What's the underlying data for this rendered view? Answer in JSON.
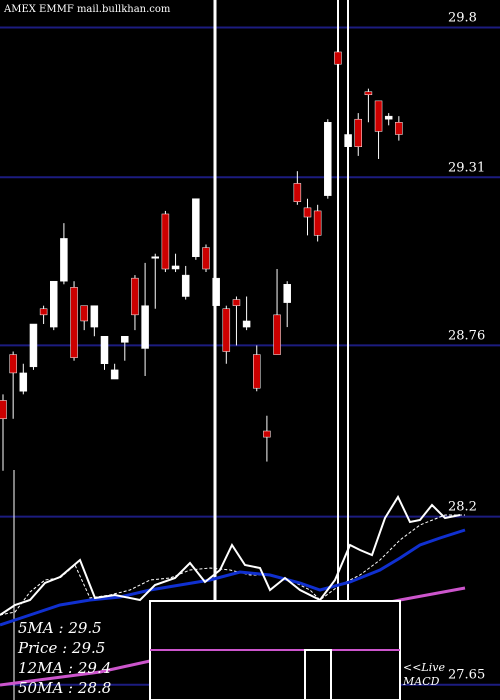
{
  "chart_data": {
    "type": "candlestick",
    "title": "AMEX  EMMF mail.bullkhan.com",
    "up_color": "#ffffff",
    "down_color": "#cc0000",
    "grid_color": "#1c1c80",
    "grid": true,
    "ylim": [
      27.6,
      29.89
    ],
    "yticks": [
      29.8,
      29.31,
      28.76,
      28.2,
      27.65
    ],
    "open": [
      28.58,
      28.73,
      28.61,
      28.69,
      28.88,
      28.82,
      28.97,
      28.95,
      28.89,
      28.82,
      28.7,
      28.65,
      28.77,
      28.98,
      28.75,
      29.05,
      29.19,
      29.01,
      28.92,
      29.05,
      29.08,
      28.89,
      28.88,
      28.91,
      28.82,
      28.73,
      28.48,
      28.86,
      28.9,
      29.29,
      29.21,
      29.2,
      29.25,
      29.72,
      29.41,
      29.5,
      29.59,
      29.56,
      29.5,
      29.49
    ],
    "high": [
      28.6,
      28.74,
      28.7,
      28.83,
      28.89,
      28.97,
      29.16,
      28.97,
      28.89,
      28.89,
      28.79,
      28.7,
      28.79,
      28.99,
      29.03,
      29.06,
      29.2,
      29.06,
      29.02,
      29.24,
      29.09,
      28.98,
      28.89,
      28.92,
      28.92,
      28.76,
      28.53,
      29.01,
      28.97,
      29.33,
      29.24,
      29.22,
      29.5,
      29.86,
      29.47,
      29.52,
      29.6,
      29.56,
      29.52,
      29.51
    ],
    "low": [
      28.35,
      28.52,
      28.6,
      28.68,
      28.83,
      28.81,
      28.96,
      28.71,
      28.81,
      28.79,
      28.68,
      28.65,
      28.71,
      28.81,
      28.66,
      28.88,
      29.0,
      29.0,
      28.91,
      29.04,
      29.0,
      28.89,
      28.7,
      28.76,
      28.81,
      28.61,
      28.38,
      28.73,
      28.82,
      29.22,
      29.12,
      29.1,
      29.24,
      29.61,
      29.37,
      29.38,
      29.49,
      29.37,
      29.48,
      29.43
    ],
    "close": [
      28.52,
      28.67,
      28.67,
      28.83,
      28.86,
      28.97,
      29.11,
      28.72,
      28.84,
      28.89,
      28.79,
      28.68,
      28.79,
      28.86,
      28.89,
      29.05,
      29.01,
      29.02,
      28.99,
      29.24,
      29.01,
      28.98,
      28.74,
      28.89,
      28.84,
      28.62,
      28.46,
      28.73,
      28.96,
      29.23,
      29.18,
      29.12,
      29.49,
      29.68,
      29.45,
      29.41,
      29.58,
      29.46,
      29.51,
      29.45
    ],
    "legend": [
      "5MA : 29.5",
      "Price : 29.5",
      "12MA : 29.4",
      "50MA : 28.8"
    ],
    "annotations": [
      "<<Live",
      "MACD"
    ]
  }
}
